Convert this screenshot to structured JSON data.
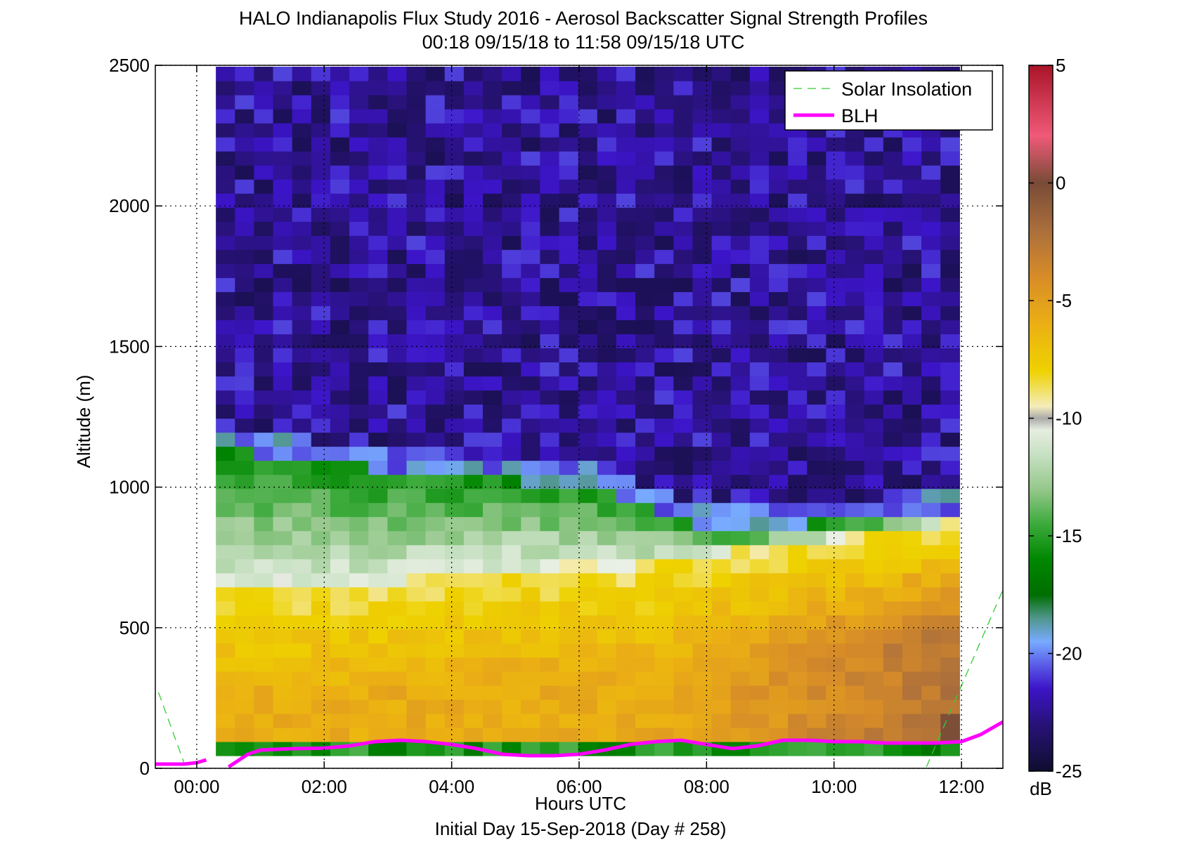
{
  "chart_data": {
    "type": "heatmap",
    "title": "HALO Indianapolis Flux Study 2016 - Aerosol Backscatter Signal Strength Profiles",
    "subtitle": "00:18 09/15/18 to 11:58 09/15/18  UTC",
    "xlabel": "Hours UTC",
    "xlabel2": "Initial Day 15-Sep-2018 (Day # 258)",
    "ylabel": "Altitude (m)",
    "xlim": [
      -0.65,
      12.65
    ],
    "ylim": [
      0,
      2500
    ],
    "grid": true,
    "x_ticks": [
      {
        "value": 0,
        "label": "00:00"
      },
      {
        "value": 2,
        "label": "02:00"
      },
      {
        "value": 4,
        "label": "04:00"
      },
      {
        "value": 6,
        "label": "06:00"
      },
      {
        "value": 8,
        "label": "08:00"
      },
      {
        "value": 10,
        "label": "10:00"
      },
      {
        "value": 12,
        "label": "12:00"
      }
    ],
    "y_ticks": [
      {
        "value": 0,
        "label": "0"
      },
      {
        "value": 500,
        "label": "500"
      },
      {
        "value": 1000,
        "label": "1000"
      },
      {
        "value": 1500,
        "label": "1500"
      },
      {
        "value": 2000,
        "label": "2000"
      },
      {
        "value": 2500,
        "label": "2500"
      }
    ],
    "colorbar": {
      "unit": "dB",
      "min": -25,
      "max": 5,
      "ticks": [
        {
          "value": 5,
          "label": "5"
        },
        {
          "value": 0,
          "label": "0"
        },
        {
          "value": -5,
          "label": "-5"
        },
        {
          "value": -10,
          "label": "-10"
        },
        {
          "value": -15,
          "label": "-15"
        },
        {
          "value": -20,
          "label": "-20"
        },
        {
          "value": -25,
          "label": "-25"
        }
      ]
    },
    "grid_cells": {
      "time_start": 0.3,
      "time_end": 11.97,
      "columns": 39,
      "altitude_start": 45,
      "altitude_end": 2495,
      "row_height": 50,
      "note_values": "dB"
    },
    "legend": {
      "placement": "top-right",
      "entries": [
        {
          "name": "Solar Insolation",
          "color": "#33cc33",
          "style": "dashed"
        },
        {
          "name": "BLH",
          "color": "#ff00ff",
          "style": "solid"
        }
      ]
    },
    "series": [
      {
        "name": "BLH",
        "color": "#ff00ff",
        "segments": [
          [
            [
              -0.65,
              15
            ],
            [
              -0.2,
              15
            ],
            [
              0.0,
              20
            ],
            [
              0.15,
              30
            ]
          ],
          [
            [
              0.5,
              5
            ],
            [
              0.8,
              50
            ],
            [
              1.0,
              65
            ],
            [
              1.5,
              70
            ],
            [
              2.0,
              72
            ],
            [
              2.4,
              80
            ],
            [
              2.8,
              95
            ],
            [
              3.2,
              100
            ],
            [
              3.6,
              95
            ],
            [
              4.0,
              85
            ],
            [
              4.4,
              70
            ],
            [
              4.8,
              50
            ],
            [
              5.2,
              45
            ],
            [
              5.6,
              45
            ],
            [
              6.0,
              50
            ],
            [
              6.4,
              65
            ],
            [
              6.8,
              85
            ],
            [
              7.2,
              95
            ],
            [
              7.6,
              100
            ],
            [
              8.0,
              85
            ],
            [
              8.4,
              70
            ],
            [
              8.8,
              80
            ],
            [
              9.2,
              100
            ],
            [
              9.6,
              100
            ],
            [
              10.0,
              95
            ],
            [
              10.4,
              95
            ],
            [
              10.8,
              90
            ],
            [
              11.2,
              90
            ],
            [
              11.6,
              90
            ],
            [
              12.0,
              95
            ],
            [
              12.3,
              120
            ],
            [
              12.65,
              165
            ]
          ]
        ]
      },
      {
        "name": "Solar Insolation",
        "color": "#33cc33",
        "segments": [
          [
            [
              -0.6,
              270
            ],
            [
              -0.2,
              20
            ]
          ],
          [
            [
              11.45,
              5
            ],
            [
              12.65,
              635
            ]
          ]
        ]
      }
    ]
  }
}
